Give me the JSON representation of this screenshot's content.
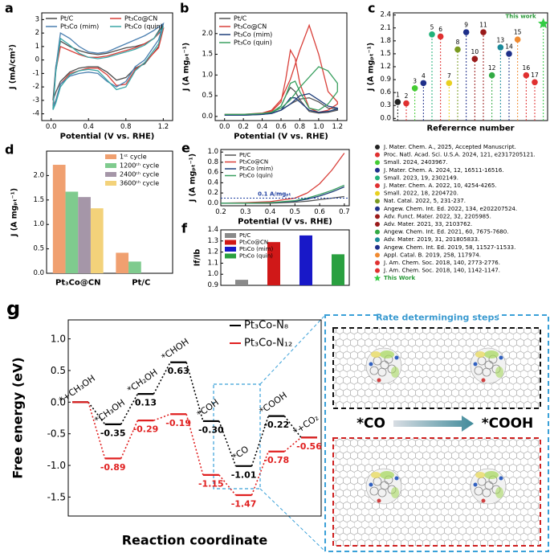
{
  "chart_data": [
    {
      "type": "line",
      "panel": "a",
      "xlabel": "Potential (V vs. RHE)",
      "ylabel": "J (mA/cm²)",
      "xlim": [
        -0.1,
        1.3
      ],
      "ylim": [
        -4.5,
        3.5
      ],
      "xticks": [
        {
          "value": 0,
          "label": "0.0"
        },
        0.4,
        0.8,
        1.2
      ],
      "yticks": [
        -4,
        -3,
        -2,
        -1,
        0,
        1,
        2,
        3
      ],
      "legend": "upper left",
      "series": [
        {
          "name": "Pt/C",
          "color": "#4d4d4d",
          "x": [
            0.02,
            0.05,
            0.1,
            0.2,
            0.3,
            0.4,
            0.5,
            0.6,
            0.7,
            0.8,
            0.9,
            1.0,
            1.1,
            1.2,
            1.15,
            1.0,
            0.9,
            0.8,
            0.7,
            0.6,
            0.5,
            0.4,
            0.3,
            0.2,
            0.1,
            0.05,
            0.02
          ],
          "values": [
            -3.0,
            -0.5,
            1.4,
            1.0,
            0.7,
            0.5,
            0.4,
            0.5,
            0.7,
            0.9,
            1.0,
            1.2,
            1.6,
            2.7,
            1.0,
            -0.3,
            -0.6,
            -1.3,
            -1.5,
            -0.9,
            -0.5,
            -0.5,
            -0.6,
            -0.9,
            -1.6,
            -2.4,
            -3.0
          ]
        },
        {
          "name": "Pt₃Co@CN",
          "color": "#d9403a",
          "x": [
            0.02,
            0.05,
            0.1,
            0.2,
            0.3,
            0.4,
            0.5,
            0.6,
            0.7,
            0.8,
            0.9,
            1.0,
            1.1,
            1.2,
            1.15,
            1.0,
            0.9,
            0.8,
            0.7,
            0.6,
            0.5,
            0.4,
            0.3,
            0.2,
            0.1,
            0.05,
            0.02
          ],
          "values": [
            -3.4,
            -0.8,
            1.0,
            0.7,
            0.4,
            0.2,
            0.2,
            0.3,
            0.5,
            0.7,
            0.9,
            1.2,
            1.6,
            2.3,
            0.9,
            -0.2,
            -0.7,
            -1.8,
            -1.9,
            -1.1,
            -0.6,
            -0.6,
            -0.8,
            -1.0,
            -1.8,
            -3.0,
            -3.4
          ]
        },
        {
          "name": "Pt₃Co (mim)",
          "color": "#4a7fb0",
          "x": [
            0.02,
            0.05,
            0.1,
            0.2,
            0.3,
            0.4,
            0.5,
            0.6,
            0.7,
            0.8,
            0.9,
            1.0,
            1.1,
            1.2,
            1.15,
            1.0,
            0.9,
            0.8,
            0.7,
            0.6,
            0.5,
            0.4,
            0.3,
            0.2,
            0.1,
            0.05,
            0.02
          ],
          "values": [
            -3.6,
            -0.6,
            2.0,
            1.6,
            1.0,
            0.6,
            0.5,
            0.6,
            0.9,
            1.2,
            1.5,
            1.8,
            2.2,
            2.7,
            1.5,
            0.0,
            -0.5,
            -1.6,
            -2.0,
            -1.6,
            -1.0,
            -0.9,
            -1.0,
            -1.2,
            -1.8,
            -3.0,
            -3.6
          ]
        },
        {
          "name": "Pt₃Co (quin)",
          "color": "#3aa6a6",
          "x": [
            0.02,
            0.05,
            0.1,
            0.2,
            0.3,
            0.4,
            0.5,
            0.6,
            0.7,
            0.8,
            0.9,
            1.0,
            1.1,
            1.2,
            1.15,
            1.0,
            0.9,
            0.8,
            0.7,
            0.6,
            0.5,
            0.4,
            0.3,
            0.2,
            0.1,
            0.05,
            0.02
          ],
          "values": [
            -3.7,
            -0.9,
            1.6,
            1.1,
            0.5,
            0.2,
            0.1,
            0.2,
            0.4,
            0.6,
            0.8,
            1.1,
            1.6,
            2.5,
            1.2,
            -0.2,
            -0.8,
            -2.0,
            -2.2,
            -1.5,
            -0.8,
            -0.7,
            -0.8,
            -1.1,
            -2.0,
            -3.2,
            -3.7
          ]
        }
      ]
    },
    {
      "type": "line",
      "panel": "b",
      "xlabel": "Potential (V vs. RHE)",
      "ylabel": "J (A mgₚₜ⁻¹)",
      "xlim": [
        -0.1,
        1.3
      ],
      "ylim": [
        -0.1,
        2.5
      ],
      "xticks": [
        {
          "value": 0,
          "label": "0.0"
        },
        0.2,
        0.4,
        0.6,
        0.8,
        {
          "value": 1,
          "label": "1.0"
        },
        1.2
      ],
      "yticks": [
        {
          "value": 0,
          "label": "0.0"
        },
        0.5,
        {
          "value": 1,
          "label": "1.0"
        },
        1.5,
        {
          "value": 2,
          "label": "2.0"
        }
      ],
      "legend": "upper left",
      "series": [
        {
          "name": "Pt/C",
          "color": "#555555",
          "x": [
            0.0,
            0.2,
            0.4,
            0.5,
            0.6,
            0.7,
            0.8,
            0.9,
            1.0,
            1.1,
            1.2,
            1.2,
            1.1,
            1.0,
            0.9,
            0.8,
            0.75,
            0.7,
            0.65,
            0.6,
            0.5,
            0.4,
            0.2,
            0.0
          ],
          "values": [
            0.03,
            0.03,
            0.05,
            0.08,
            0.15,
            0.3,
            0.42,
            0.45,
            0.35,
            0.2,
            0.18,
            0.15,
            0.1,
            0.08,
            0.12,
            0.4,
            0.6,
            0.7,
            0.5,
            0.25,
            0.08,
            0.05,
            0.03,
            0.03
          ]
        },
        {
          "name": "Pt₃Co@CN",
          "color": "#d9403a",
          "x": [
            0.0,
            0.2,
            0.4,
            0.5,
            0.6,
            0.7,
            0.8,
            0.9,
            1.0,
            1.1,
            1.2,
            1.2,
            1.1,
            1.0,
            0.9,
            0.8,
            0.75,
            0.7,
            0.65,
            0.6,
            0.5,
            0.4,
            0.2,
            0.0
          ],
          "values": [
            0.05,
            0.05,
            0.08,
            0.15,
            0.4,
            0.9,
            1.6,
            2.2,
            1.5,
            0.6,
            0.35,
            0.3,
            0.15,
            0.1,
            0.2,
            0.8,
            1.4,
            1.6,
            0.9,
            0.35,
            0.12,
            0.08,
            0.05,
            0.05
          ]
        },
        {
          "name": "Pt₃Co (mim)",
          "color": "#1f3f7a",
          "x": [
            0.0,
            0.2,
            0.4,
            0.5,
            0.6,
            0.7,
            0.8,
            0.9,
            1.0,
            1.1,
            1.2,
            1.2,
            1.1,
            1.0,
            0.9,
            0.8,
            0.75,
            0.7,
            0.65,
            0.6,
            0.5,
            0.4,
            0.2,
            0.0
          ],
          "values": [
            0.03,
            0.03,
            0.05,
            0.08,
            0.15,
            0.3,
            0.5,
            0.55,
            0.4,
            0.25,
            0.2,
            0.18,
            0.12,
            0.1,
            0.15,
            0.35,
            0.45,
            0.45,
            0.3,
            0.15,
            0.07,
            0.05,
            0.03,
            0.03
          ]
        },
        {
          "name": "Pt₃Co (quin)",
          "color": "#3aa060",
          "x": [
            0.0,
            0.2,
            0.4,
            0.5,
            0.6,
            0.7,
            0.8,
            0.9,
            1.0,
            1.1,
            1.2,
            1.2,
            1.1,
            1.0,
            0.9,
            0.8,
            0.75,
            0.7,
            0.65,
            0.6,
            0.5,
            0.4,
            0.2,
            0.0
          ],
          "values": [
            0.05,
            0.05,
            0.07,
            0.1,
            0.2,
            0.4,
            0.7,
            0.95,
            1.2,
            1.1,
            0.8,
            0.6,
            0.3,
            0.15,
            0.2,
            0.6,
            0.85,
            0.8,
            0.5,
            0.25,
            0.1,
            0.07,
            0.05,
            0.05
          ]
        }
      ]
    },
    {
      "type": "scatter",
      "panel": "c",
      "xlabel": "Referernce number",
      "ylabel": "J (A mgₚₜ⁻¹)",
      "ylim": [
        -0.05,
        2.45
      ],
      "yticks": [
        {
          "value": 0,
          "label": "0.0"
        },
        0.3,
        0.6,
        0.9,
        1.2,
        1.5,
        1.8,
        2.1,
        2.4
      ],
      "categories": [
        "1",
        "2",
        "3",
        "4",
        "5",
        "6",
        "7",
        "8",
        "9",
        "10",
        "11",
        "12",
        "13",
        "14",
        "15",
        "16",
        "17",
        "This work"
      ],
      "values": [
        0.38,
        0.35,
        0.7,
        0.82,
        1.95,
        1.9,
        0.82,
        1.6,
        2.0,
        1.38,
        2.0,
        1.0,
        1.65,
        1.5,
        1.83,
        1.0,
        0.84,
        2.2
      ],
      "colors": [
        "#222222",
        "#e03030",
        "#44cc33",
        "#1e2f8a",
        "#22b27a",
        "#e03030",
        "#e8d020",
        "#7a9a20",
        "#1e2f8a",
        "#9a1a1a",
        "#9a1a1a",
        "#33aa44",
        "#1a8a9a",
        "#1e2f8a",
        "#f08a30",
        "#e03030",
        "#e03030",
        "#33cc44"
      ],
      "markers": [
        "circle",
        "circle",
        "circle",
        "circle",
        "circle",
        "circle",
        "circle",
        "circle",
        "circle",
        "circle",
        "circle",
        "circle",
        "circle",
        "circle",
        "circle",
        "circle",
        "circle",
        "star"
      ],
      "references": [
        "J. Mater. Chem. A., 2025, Accepted Manuscript.",
        "Proc. Natl. Acad. Sci. U.S.A. 2024, 121, e2317205121.",
        "Small. 2024, 2403967.",
        "J. Mater. Chem. A. 2024, 12, 16511-16516.",
        "Small. 2023, 19, 2302149.",
        "J. Mater. Chem. A. 2022, 10, 4254-4265.",
        "Small. 2022, 18, 2204720.",
        "Nat. Catal. 2022, 5, 231-237.",
        "Angew. Chem. Int. Ed. 2022, 134, e202207524.",
        "Adv. Funct. Mater. 2022, 32, 2205985.",
        "Adv. Mater. 2021, 33, 2103762.",
        "Angew. Chem. Int. Ed. 2021, 60, 7675-7680.",
        "Adv. Mater. 2019, 31, 201805833.",
        "Angew. Chem. Int. Ed. 2019, 58, 11527-11533.",
        "Appl. Catal. B. 2019, 258, 117974.",
        "J. Am. Chem. Soc. 2018, 140, 2773-2776.",
        "J. Am. Chem. Soc. 2018, 140, 1142-1147.",
        "This Work"
      ]
    },
    {
      "type": "bar",
      "panel": "d",
      "ylabel": "J (A mgₚₜ⁻¹)",
      "ylim": [
        0,
        2.5
      ],
      "yticks": [
        {
          "value": 0,
          "label": "0.0"
        },
        0.5,
        {
          "value": 1,
          "label": "1.0"
        },
        1.5,
        {
          "value": 2,
          "label": "2.0"
        }
      ],
      "legend": "upper right",
      "categories": [
        "Pt₃Co@CN",
        "Pt/C"
      ],
      "series": [
        {
          "name": "1ˢᵗ cycle",
          "color": "#f0a070",
          "values": [
            2.22,
            0.42
          ]
        },
        {
          "name": "1200ᵗʰ cycle",
          "color": "#7fcb8e",
          "values": [
            1.67,
            0.24
          ]
        },
        {
          "name": "2400ᵗʰ cycle",
          "color": "#a596a8",
          "values": [
            1.56,
            null
          ]
        },
        {
          "name": "3600ᵗʰ cycle",
          "color": "#f3d27a",
          "values": [
            1.33,
            null
          ]
        }
      ]
    },
    {
      "type": "line",
      "panel": "e",
      "xlabel": "Potential (V vs. RHE)",
      "ylabel": "J (A mgₚₜ⁻¹)",
      "xlim": [
        0.2,
        0.72
      ],
      "ylim": [
        -0.05,
        1.05
      ],
      "xticks": [
        0.2,
        0.3,
        0.4,
        0.5,
        0.6,
        0.7
      ],
      "yticks": [
        {
          "value": 0,
          "label": "0.0"
        },
        0.2,
        0.4,
        0.6,
        0.8,
        {
          "value": 1,
          "label": "1.0"
        }
      ],
      "legend": "upper left",
      "reference_line": 0.1,
      "annotation": "0.1 A/mgₚₜ",
      "series": [
        {
          "name": "Pt/C",
          "color": "#555555",
          "x": [
            0.2,
            0.3,
            0.4,
            0.5,
            0.55,
            0.6,
            0.65,
            0.7
          ],
          "values": [
            0,
            0,
            0,
            0.02,
            0.04,
            0.07,
            0.1,
            0.13
          ]
        },
        {
          "name": "Pt₃Co@CN",
          "color": "#d9403a",
          "x": [
            0.2,
            0.3,
            0.4,
            0.5,
            0.55,
            0.6,
            0.65,
            0.7
          ],
          "values": [
            0,
            0.01,
            0.03,
            0.1,
            0.2,
            0.38,
            0.65,
            0.98
          ]
        },
        {
          "name": "Pt₃Co (mim)",
          "color": "#1f3f7a",
          "x": [
            0.2,
            0.3,
            0.4,
            0.5,
            0.55,
            0.6,
            0.65,
            0.7
          ],
          "values": [
            0,
            0,
            0.01,
            0.04,
            0.08,
            0.14,
            0.22,
            0.32
          ]
        },
        {
          "name": "Pt₃Co (quin)",
          "color": "#3aa060",
          "x": [
            0.2,
            0.3,
            0.4,
            0.5,
            0.55,
            0.6,
            0.65,
            0.7
          ],
          "values": [
            0,
            0,
            0.01,
            0.05,
            0.1,
            0.17,
            0.25,
            0.35
          ]
        }
      ]
    },
    {
      "type": "bar",
      "panel": "f",
      "ylabel": "If/Ib",
      "ylim": [
        0.9,
        1.4
      ],
      "yticks": [
        0.9,
        {
          "value": 1,
          "label": "1.0"
        },
        1.1,
        1.2,
        1.3,
        1.4
      ],
      "legend": "upper left",
      "categories": [
        "Pt/C",
        "Pt₃Co@CN",
        "Pt₃Co (mim)",
        "Pt₃Co (quin)"
      ],
      "values": [
        0.95,
        1.29,
        1.35,
        1.18
      ],
      "colors": [
        "#8a8a8a",
        "#d01818",
        "#1818c8",
        "#2aa040"
      ]
    },
    {
      "type": "energy",
      "panel": "g",
      "xlabel": "Reaction coordinate",
      "ylabel": "Free energy (eV)",
      "ylim": [
        -1.8,
        1.3
      ],
      "yticks": [
        -1.5,
        {
          "value": -1,
          "label": "-1.0"
        },
        -0.5,
        {
          "value": 0,
          "label": "0.0"
        },
        0.5,
        {
          "value": 1,
          "label": "1.0"
        }
      ],
      "legend": "upper right",
      "categories": [
        "*+CH₃OH",
        "*CH₃OH",
        "*CH₂OH",
        "*CHOH",
        "*COH",
        "*CO",
        "*COOH",
        "*+CO₂"
      ],
      "series": [
        {
          "name": "Pt₃Co-N₈",
          "color": "#000000",
          "values": [
            0,
            -0.35,
            0.13,
            0.63,
            -0.3,
            -1.01,
            -0.22,
            -0.56
          ],
          "value_labels": [
            null,
            "-0.35",
            "0.13",
            "0.63",
            "-0.30",
            "-1.01",
            "-0.22",
            null
          ]
        },
        {
          "name": "Pt₃Co-N₁₂",
          "color": "#e02020",
          "values": [
            0,
            -0.89,
            -0.29,
            -0.19,
            -1.15,
            -1.47,
            -0.78,
            -0.56
          ],
          "value_labels": [
            null,
            "-0.89",
            "-0.29",
            "-0.19",
            "-1.15",
            "-1.47",
            "-0.78",
            "-0.56"
          ]
        }
      ],
      "annotations": [
        "Rate determinging steps",
        "*CO",
        "*COOH"
      ]
    }
  ]
}
